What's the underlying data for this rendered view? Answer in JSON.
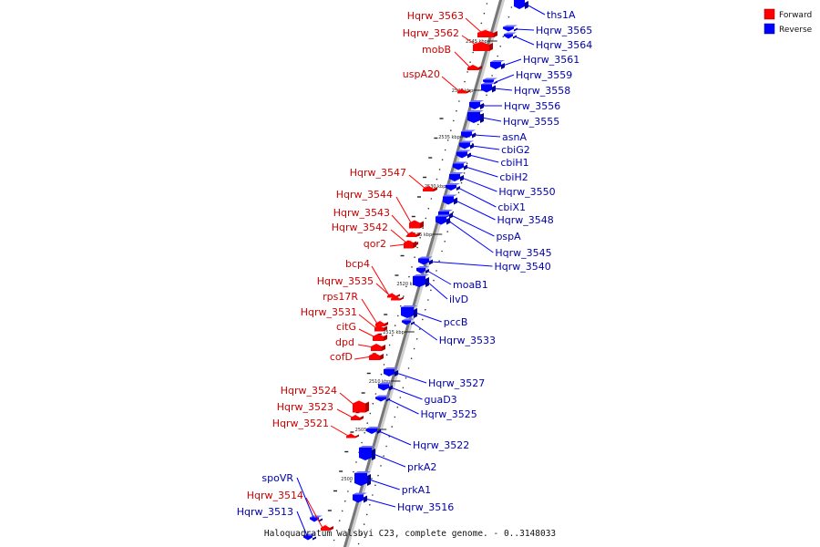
{
  "caption": "Haloquadratum walsbyi C23, complete genome. - 0..3148033",
  "legend": {
    "forward": {
      "label": "Forward",
      "color": "#ff0000"
    },
    "reverse": {
      "label": "Reverse",
      "color": "#0000ff"
    }
  },
  "colors": {
    "forward": "#ff0000",
    "reverse": "#0000ff",
    "backbone": "#777777"
  },
  "ticks": [
    "2545 kbp",
    "2540 kbp",
    "2535 kbp",
    "2530 kbp",
    "2525 kbp",
    "2520 kbp",
    "2515 kbp",
    "2510 kbp",
    "2505 kbp",
    "2500 kbp"
  ],
  "forward_genes": [
    "Hqrw_3563",
    "Hqrw_3562",
    "mobB",
    "uspA20",
    "Hqrw_3547",
    "Hqrw_3544",
    "Hqrw_3543",
    "Hqrw_3542",
    "qor2",
    "bcp4",
    "Hqrw_3535",
    "rps17R",
    "Hqrw_3531",
    "citG",
    "dpd",
    "cofD",
    "Hqrw_3524",
    "Hqrw_3523",
    "Hqrw_3521",
    "Hqrw_3514"
  ],
  "reverse_genes": [
    "ths1A",
    "Hqrw_3565",
    "Hqrw_3564",
    "Hqrw_3561",
    "Hqrw_3559",
    "Hqrw_3558",
    "Hqrw_3556",
    "Hqrw_3555",
    "asnA",
    "cbiG2",
    "cbiH1",
    "cbiH2",
    "Hqrw_3550",
    "cbiX1",
    "Hqrw_3548",
    "pspA",
    "Hqrw_3545",
    "Hqrw_3540",
    "moaB1",
    "ilvD",
    "pccB",
    "Hqrw_3533",
    "Hqrw_3527",
    "guaD3",
    "Hqrw_3525",
    "Hqrw_3522",
    "prkA2",
    "prkA1",
    "Hqrw_3516",
    "spoVR",
    "Hqrw_3513"
  ]
}
